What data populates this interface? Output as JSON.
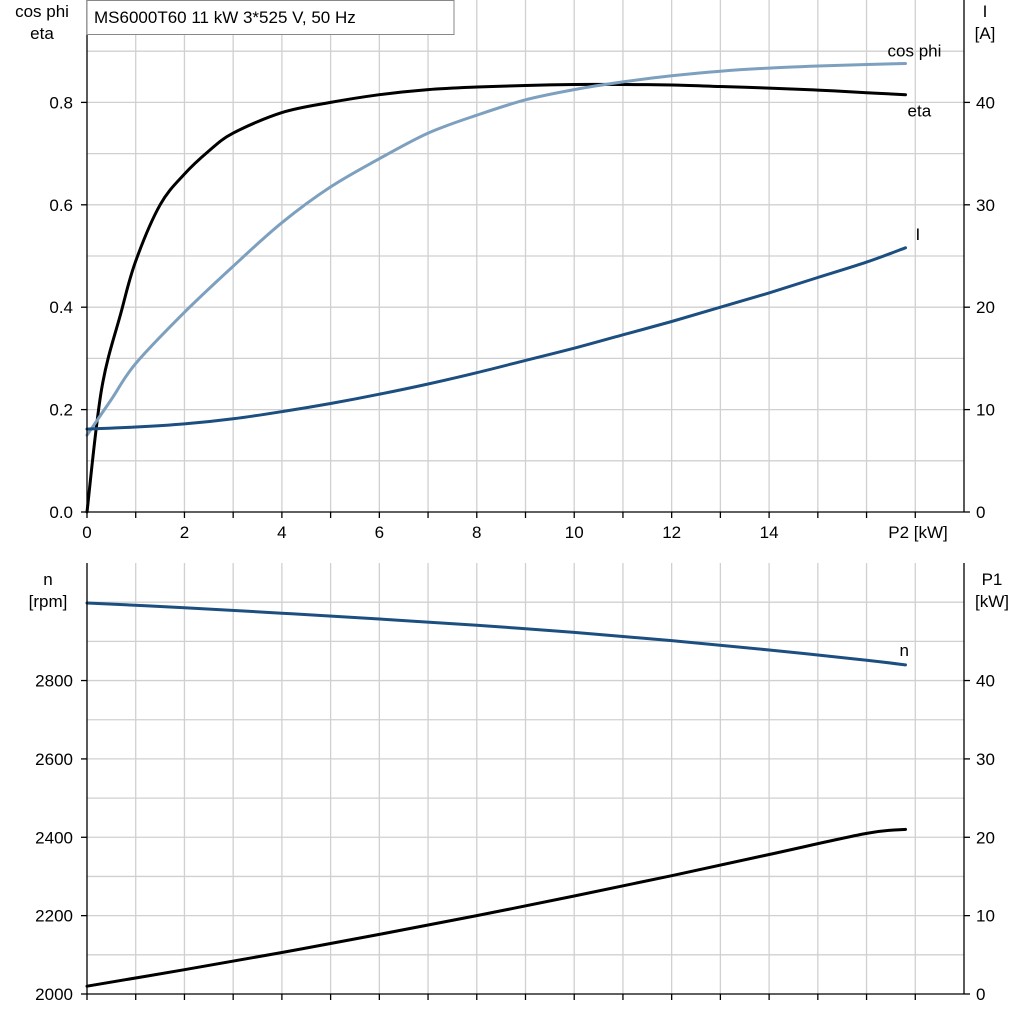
{
  "chart_data": [
    {
      "type": "line",
      "title": "MS6000T60   11 kW   3*525 V, 50 Hz",
      "x_label": "P2 [kW]",
      "x_ticks": [
        0,
        2,
        4,
        6,
        8,
        10,
        12,
        14
      ],
      "x_range": [
        0,
        18
      ],
      "y_left_label": [
        "cos phi",
        "eta"
      ],
      "y_left_ticks": [
        "0.0",
        "0.2",
        "0.4",
        "0.6",
        "0.8"
      ],
      "y_left_range": [
        0,
        1.0
      ],
      "y_right_label": [
        "I",
        "[A]"
      ],
      "y_right_ticks": [
        "0",
        "10",
        "20",
        "30",
        "40"
      ],
      "y_right_range": [
        0,
        50
      ],
      "grid": true,
      "series": [
        {
          "name": "eta",
          "axis": "left",
          "color": "#000000",
          "x": [
            0,
            0.3,
            0.7,
            1.0,
            1.5,
            2.0,
            2.5,
            3.0,
            4.0,
            5.0,
            6.0,
            7.0,
            8.0,
            9.0,
            10.0,
            11.0,
            12.0,
            13.0,
            14.0,
            15.0,
            16.0,
            16.8
          ],
          "y": [
            0.0,
            0.24,
            0.39,
            0.49,
            0.6,
            0.66,
            0.705,
            0.74,
            0.78,
            0.8,
            0.815,
            0.825,
            0.83,
            0.833,
            0.835,
            0.835,
            0.834,
            0.831,
            0.828,
            0.824,
            0.819,
            0.815
          ]
        },
        {
          "name": "cos phi",
          "axis": "left",
          "color": "#7ea0bf",
          "x": [
            0,
            0.5,
            1.0,
            2.0,
            3.0,
            4.0,
            5.0,
            6.0,
            7.0,
            8.0,
            9.0,
            10.0,
            11.0,
            12.0,
            13.0,
            14.0,
            15.0,
            16.0,
            16.8
          ],
          "y": [
            0.15,
            0.22,
            0.29,
            0.39,
            0.48,
            0.565,
            0.635,
            0.69,
            0.74,
            0.775,
            0.805,
            0.825,
            0.84,
            0.852,
            0.861,
            0.867,
            0.871,
            0.874,
            0.876
          ]
        },
        {
          "name": "I",
          "axis": "right",
          "color": "#1c4f80",
          "x": [
            0,
            1,
            2,
            3,
            4,
            5,
            6,
            7,
            8,
            9,
            10,
            11,
            12,
            13,
            14,
            15,
            16,
            16.8
          ],
          "y": [
            8.1,
            8.3,
            8.6,
            9.1,
            9.8,
            10.6,
            11.5,
            12.5,
            13.6,
            14.8,
            16.0,
            17.3,
            18.6,
            20.0,
            21.4,
            22.9,
            24.4,
            25.8
          ]
        }
      ]
    },
    {
      "type": "line",
      "x_range": [
        0,
        18
      ],
      "y_left_label": [
        "n",
        "[rpm]"
      ],
      "y_left_ticks": [
        "2000",
        "2200",
        "2400",
        "2600",
        "2800"
      ],
      "y_left_range": [
        2000,
        3100
      ],
      "y_right_label": [
        "P1",
        "[kW]"
      ],
      "y_right_ticks": [
        "0",
        "10",
        "20",
        "30",
        "40"
      ],
      "y_right_range": [
        0,
        55
      ],
      "grid": true,
      "series": [
        {
          "name": "n",
          "axis": "left",
          "color": "#1c4f80",
          "x": [
            0,
            2,
            4,
            6,
            8,
            10,
            12,
            14,
            16,
            16.8
          ],
          "y": [
            2998,
            2986,
            2972,
            2957,
            2941,
            2923,
            2902,
            2878,
            2852,
            2840
          ]
        },
        {
          "name": "P1",
          "axis": "right",
          "color": "#000000",
          "x": [
            0,
            2,
            4,
            6,
            8,
            10,
            12,
            14,
            16,
            16.8
          ],
          "y": [
            1.0,
            3.1,
            5.3,
            7.6,
            10.0,
            12.5,
            15.1,
            17.8,
            20.5,
            21.0
          ]
        }
      ]
    }
  ]
}
